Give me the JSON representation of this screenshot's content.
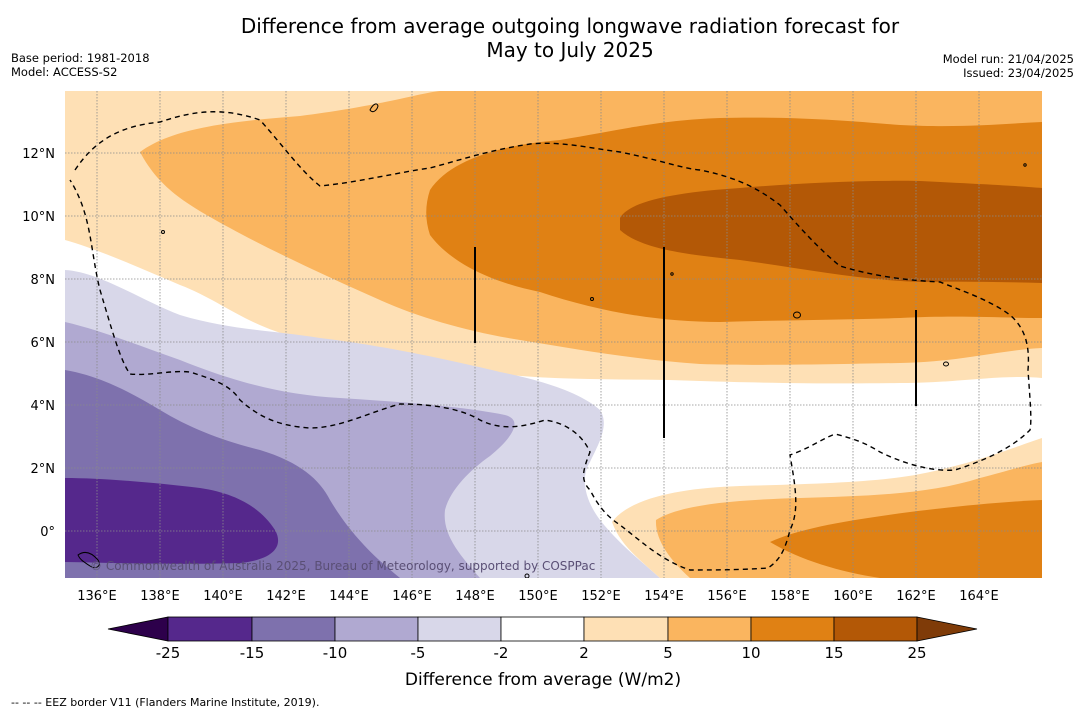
{
  "title": {
    "line1": "Difference from average outgoing longwave radiation forecast for",
    "line2": "May to July 2025"
  },
  "meta_left": {
    "base_period": "Base period: 1981-2018",
    "model": "Model: ACCESS-S2"
  },
  "meta_right": {
    "model_run": "Model run: 21/04/2025",
    "issued": "Issued: 23/04/2025"
  },
  "map": {
    "x_ticks": [
      "136°E",
      "138°E",
      "140°E",
      "142°E",
      "144°E",
      "146°E",
      "148°E",
      "150°E",
      "152°E",
      "154°E",
      "156°E",
      "158°E",
      "160°E",
      "162°E",
      "164°E"
    ],
    "y_ticks": [
      "12°N",
      "10°N",
      "8°N",
      "6°N",
      "4°N",
      "2°N",
      "0°"
    ],
    "copyright": "© Commonwealth of Australia 2025, Bureau of Meteorology, supported by COSPPac"
  },
  "colorbar": {
    "labels": [
      "-25",
      "-15",
      "-10",
      "-5",
      "-2",
      "2",
      "5",
      "10",
      "15",
      "25"
    ],
    "colors": [
      "#55288c",
      "#7e71ad",
      "#b0a9d1",
      "#d8d7e9",
      "#ffffff",
      "#fee0b5",
      "#fab55f",
      "#e08114",
      "#b35806",
      "#7f3b08",
      "#2d004b"
    ],
    "title": "Difference from average (W/m2)"
  },
  "footnote": "--  --  -- EEZ border V11 (Flanders Marine Institute, 2019)."
}
